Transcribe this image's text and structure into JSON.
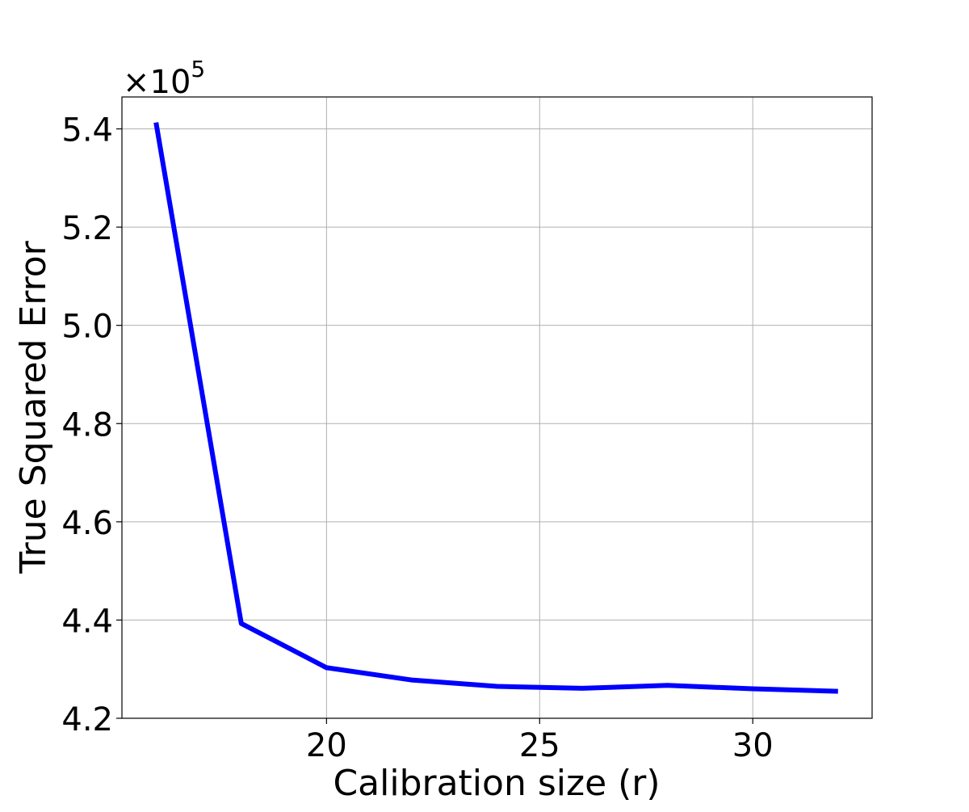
{
  "chart_data": {
    "type": "line",
    "xlabel": "Calibration size (r)",
    "ylabel": "True Squared Error",
    "y_offset_label": "×10",
    "y_offset_exponent": "5",
    "xlim": [
      15.2,
      32.8
    ],
    "ylim": [
      4.2,
      5.465
    ],
    "x_ticks": [
      20,
      25,
      30
    ],
    "x_tick_labels": [
      "20",
      "25",
      "30"
    ],
    "y_ticks": [
      4.2,
      4.4,
      4.6,
      4.8,
      5.0,
      5.2,
      5.4
    ],
    "y_tick_labels": [
      "4.2",
      "4.4",
      "4.6",
      "4.8",
      "5.0",
      "5.2",
      "5.4"
    ],
    "y_scale_multiplier": 100000,
    "grid": true,
    "series": [
      {
        "color": "#0000ff",
        "x": [
          16,
          18,
          20,
          22,
          24,
          26,
          28,
          30,
          32
        ],
        "y": [
          5.413,
          4.393,
          4.303,
          4.278,
          4.265,
          4.261,
          4.267,
          4.26,
          4.255
        ]
      }
    ]
  }
}
